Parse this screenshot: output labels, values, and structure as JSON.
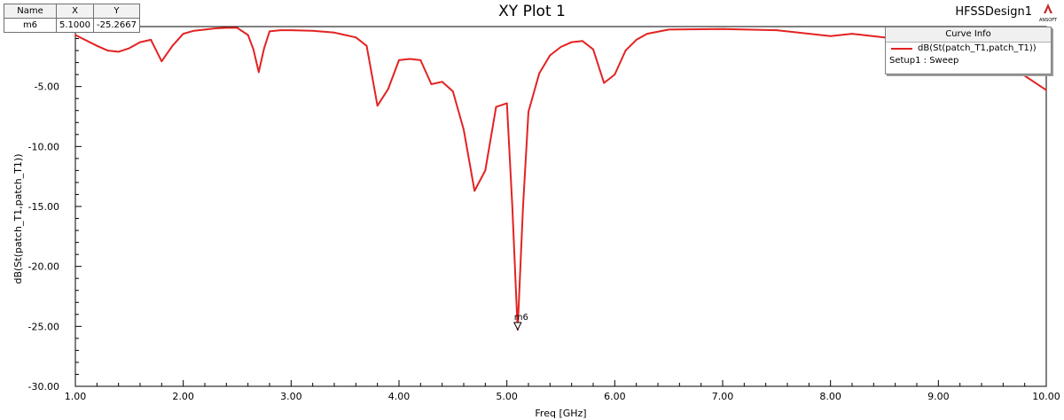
{
  "header": {
    "title": "XY Plot 1",
    "design_name": "HFSSDesign1",
    "logo_text": "ANSOFT"
  },
  "marker_table": {
    "columns": [
      "Name",
      "X",
      "Y"
    ],
    "row": {
      "name": "m6",
      "x": "5.1000",
      "y": "-25.2667"
    }
  },
  "legend": {
    "title": "Curve Info",
    "trace_label": "dB(St(patch_T1,patch_T1))",
    "setup_label": "Setup1 : Sweep"
  },
  "colors": {
    "trace": "#e32222",
    "axis": "#000000",
    "background": "#ffffff"
  },
  "chart_data": {
    "type": "line",
    "title": "XY Plot 1",
    "xlabel": "Freq [GHz]",
    "ylabel": "dB(St(patch_T1,patch_T1))",
    "xlim": [
      1.0,
      10.0
    ],
    "ylim": [
      -30.0,
      0.0
    ],
    "x_ticks": [
      1,
      2,
      3,
      4,
      5,
      6,
      7,
      8,
      9,
      10
    ],
    "x_tick_labels": [
      "1.00",
      "2.00",
      "3.00",
      "4.00",
      "5.00",
      "6.00",
      "7.00",
      "8.00",
      "9.00",
      "10.00"
    ],
    "y_ticks": [
      -5,
      -10,
      -15,
      -20,
      -25,
      -30
    ],
    "y_tick_labels": [
      "-5.00",
      "-10.00",
      "-15.00",
      "-20.00",
      "-25.00",
      "-30.00"
    ],
    "grid": false,
    "legend_position": "top-right",
    "series": [
      {
        "name": "dB(St(patch_T1,patch_T1))",
        "x": [
          1.0,
          1.2,
          1.3,
          1.4,
          1.5,
          1.6,
          1.7,
          1.8,
          1.9,
          2.0,
          2.1,
          2.2,
          2.3,
          2.4,
          2.5,
          2.6,
          2.65,
          2.7,
          2.75,
          2.8,
          2.9,
          3.0,
          3.2,
          3.4,
          3.6,
          3.7,
          3.8,
          3.9,
          4.0,
          4.1,
          4.2,
          4.3,
          4.4,
          4.5,
          4.6,
          4.7,
          4.8,
          4.9,
          5.0,
          5.05,
          5.1,
          5.15,
          5.2,
          5.3,
          5.4,
          5.5,
          5.6,
          5.7,
          5.8,
          5.9,
          6.0,
          6.1,
          6.2,
          6.3,
          6.5,
          7.0,
          7.5,
          8.0,
          8.2,
          8.5,
          9.0,
          9.3,
          9.5,
          9.7,
          9.8,
          9.9,
          10.0
        ],
        "y": [
          -0.7,
          -1.6,
          -2.0,
          -2.1,
          -1.8,
          -1.3,
          -1.1,
          -2.9,
          -1.6,
          -0.6,
          -0.35,
          -0.25,
          -0.15,
          -0.1,
          -0.1,
          -0.7,
          -1.9,
          -3.8,
          -1.8,
          -0.4,
          -0.3,
          -0.3,
          -0.35,
          -0.5,
          -0.9,
          -1.6,
          -6.6,
          -5.2,
          -2.8,
          -2.7,
          -2.8,
          -4.8,
          -4.6,
          -5.4,
          -8.6,
          -13.7,
          -12.0,
          -6.7,
          -6.4,
          -15.0,
          -25.27,
          -15.0,
          -7.1,
          -3.9,
          -2.4,
          -1.7,
          -1.3,
          -1.2,
          -1.9,
          -4.7,
          -4.0,
          -2.0,
          -1.1,
          -0.6,
          -0.25,
          -0.2,
          -0.3,
          -0.8,
          -0.6,
          -0.9,
          -1.3,
          -1.5,
          -2.0,
          -3.4,
          -4.1,
          -4.7,
          -5.3
        ]
      }
    ],
    "annotations": [
      {
        "label": "m6",
        "x": 5.1,
        "y": -25.27
      }
    ]
  }
}
